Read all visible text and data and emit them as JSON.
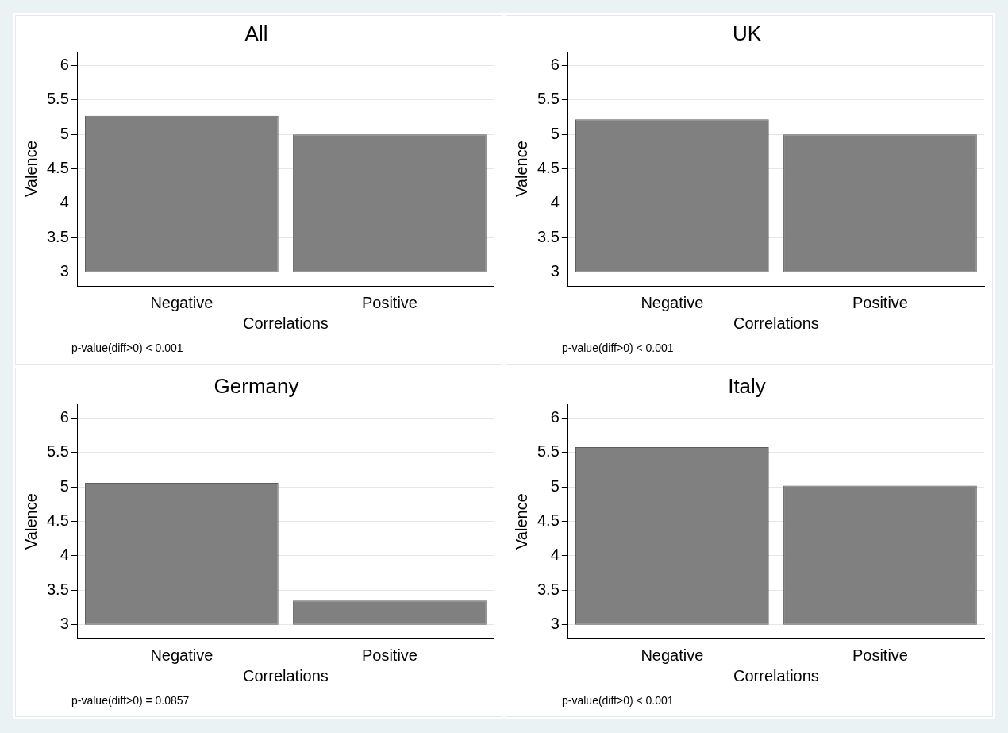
{
  "chart_data": [
    {
      "type": "bar",
      "title": "All",
      "xlabel": "Correlations",
      "ylabel": "Valence",
      "categories": [
        "Negative",
        "Positive"
      ],
      "base": [
        3,
        3
      ],
      "values": [
        2.27,
        2.0
      ],
      "color": "#808080",
      "ylim": [
        2.8,
        6.2
      ],
      "yticks": [
        3,
        3.5,
        4,
        4.5,
        5,
        5.5,
        6
      ],
      "grid": "y",
      "annotations": [
        "p-value(diff>0) < 0.001"
      ]
    },
    {
      "type": "bar",
      "title": "UK",
      "xlabel": "Correlations",
      "ylabel": "Valence",
      "categories": [
        "Negative",
        "Positive"
      ],
      "base": [
        3,
        3
      ],
      "values": [
        2.22,
        2.0
      ],
      "color": "#808080",
      "ylim": [
        2.8,
        6.2
      ],
      "yticks": [
        3,
        3.5,
        4,
        4.5,
        5,
        5.5,
        6
      ],
      "grid": "y",
      "annotations": [
        "p-value(diff>0) < 0.001"
      ]
    },
    {
      "type": "bar",
      "title": "Germany",
      "xlabel": "Correlations",
      "ylabel": "Valence",
      "categories": [
        "Negative",
        "Positive"
      ],
      "base": [
        3,
        3
      ],
      "values": [
        2.06,
        0.35
      ],
      "color": "#808080",
      "ylim": [
        2.8,
        6.2
      ],
      "yticks": [
        3,
        3.5,
        4,
        4.5,
        5,
        5.5,
        6
      ],
      "grid": "y",
      "annotations": [
        "p-value(diff>0) = 0.0857"
      ]
    },
    {
      "type": "bar",
      "title": "Italy",
      "xlabel": "Correlations",
      "ylabel": "Valence",
      "categories": [
        "Negative",
        "Positive"
      ],
      "base": [
        3,
        3
      ],
      "values": [
        2.58,
        2.02
      ],
      "color": "#808080",
      "ylim": [
        2.8,
        6.2
      ],
      "yticks": [
        3,
        3.5,
        4,
        4.5,
        5,
        5.5,
        6
      ],
      "grid": "y",
      "annotations": [
        "p-value(diff>0) < 0.001"
      ]
    }
  ]
}
